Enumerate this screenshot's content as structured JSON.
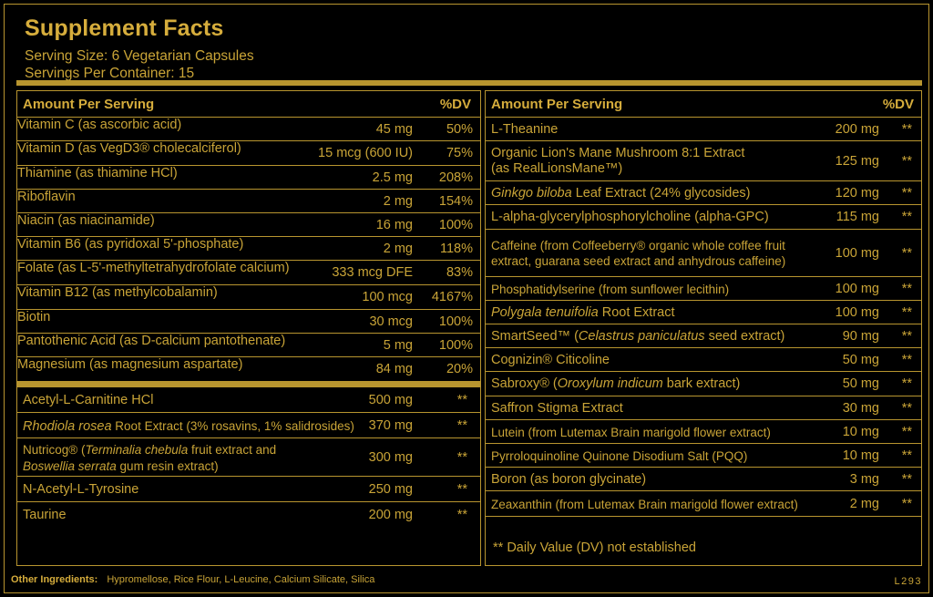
{
  "header": {
    "title": "Supplement Facts",
    "serving_size": "Serving Size: 6 Vegetarian Capsules",
    "servings_per_container": "Servings Per Container: 15"
  },
  "columns": {
    "amount_per_serving": "Amount Per Serving",
    "dv": "%DV"
  },
  "left_vitamins": [
    {
      "name": "Vitamin C (as ascorbic acid)",
      "amount": "45 mg",
      "dv": "50%"
    },
    {
      "name": "Vitamin D (as VegD3® cholecalciferol)",
      "amount": "15 mcg (600 IU)",
      "dv": "75%"
    },
    {
      "name": "Thiamine (as thiamine HCl)",
      "amount": "2.5 mg",
      "dv": "208%"
    },
    {
      "name": "Riboflavin",
      "amount": "2 mg",
      "dv": "154%"
    },
    {
      "name": "Niacin (as niacinamide)",
      "amount": "16 mg",
      "dv": "100%"
    },
    {
      "name": "Vitamin B6 (as pyridoxal 5'-phosphate)",
      "amount": "2 mg",
      "dv": "118%"
    },
    {
      "name": "Folate (as L-5'-methyltetrahydrofolate calcium)",
      "amount": "333 mcg DFE",
      "dv": "83%"
    },
    {
      "name": "Vitamin B12 (as methylcobalamin)",
      "amount": "100 mcg",
      "dv": "4167%"
    },
    {
      "name": "Biotin",
      "amount": "30 mcg",
      "dv": "100%"
    },
    {
      "name": "Pantothenic Acid (as D-calcium pantothenate)",
      "amount": "5 mg",
      "dv": "100%"
    },
    {
      "name": "Magnesium (as magnesium aspartate)",
      "amount": "84 mg",
      "dv": "20%"
    }
  ],
  "left_other": [
    {
      "name": "Acetyl-L-Carnitine HCl",
      "amount": "500 mg",
      "dv": "**"
    },
    {
      "name_italic": "Rhodiola rosea",
      "name_rest": " Root Extract (3% rosavins, 1% salidrosides)",
      "amount": "370 mg",
      "dv": "**"
    },
    {
      "name_line1_a": "Nutricog® (",
      "name_line1_i": "Terminalia chebula",
      "name_line1_b": " fruit extract and",
      "name_line2_i": "Boswellia serrata",
      "name_line2_b": " gum resin extract)",
      "amount": "300 mg",
      "dv": "**"
    },
    {
      "name": "N-Acetyl-L-Tyrosine",
      "amount": "250 mg",
      "dv": "**"
    },
    {
      "name": "Taurine",
      "amount": "200 mg",
      "dv": "**"
    }
  ],
  "right_rows": [
    {
      "name": "L-Theanine",
      "amount": "200 mg",
      "dv": "**"
    },
    {
      "name_line1": "Organic Lion's Mane Mushroom 8:1 Extract",
      "name_line2": "(as RealLionsMane™)",
      "amount": "125 mg",
      "dv": "**"
    },
    {
      "name_italic": "Ginkgo biloba",
      "name_rest": " Leaf Extract (24% glycosides)",
      "amount": "120 mg",
      "dv": "**"
    },
    {
      "name": "L-alpha-glycerylphosphorylcholine (alpha-GPC)",
      "amount": "115 mg",
      "dv": "**"
    },
    {
      "name_line1": "Caffeine (from Coffeeberry® organic whole coffee fruit",
      "name_line2": "extract, guarana seed extract and anhydrous caffeine)",
      "amount": "100 mg",
      "dv": "**"
    },
    {
      "name": "Phosphatidylserine (from sunflower lecithin)",
      "amount": "100 mg",
      "dv": "**"
    },
    {
      "name_italic": "Polygala tenuifolia",
      "name_rest": " Root Extract",
      "amount": "100 mg",
      "dv": "**"
    },
    {
      "name_pre": "SmartSeed™ (",
      "name_italic": "Celastrus paniculatus",
      "name_rest": " seed extract)",
      "amount": "90 mg",
      "dv": "**"
    },
    {
      "name": "Cognizin® Citicoline",
      "amount": "50 mg",
      "dv": "**"
    },
    {
      "name_pre": "Sabroxy® (",
      "name_italic": "Oroxylum indicum",
      "name_rest": " bark extract)",
      "amount": "50 mg",
      "dv": "**"
    },
    {
      "name": "Saffron Stigma Extract",
      "amount": "30 mg",
      "dv": "**"
    },
    {
      "name": "Lutein (from Lutemax Brain marigold flower extract)",
      "amount": "10 mg",
      "dv": "**"
    },
    {
      "name": "Pyrroloquinoline Quinone Disodium Salt (PQQ)",
      "amount": "10 mg",
      "dv": "**"
    },
    {
      "name": "Boron  (as boron glycinate)",
      "amount": "3 mg",
      "dv": "**"
    },
    {
      "name": "Zeaxanthin (from Lutemax Brain marigold flower extract)",
      "amount": "2 mg",
      "dv": "**"
    }
  ],
  "footnote": "** Daily Value (DV) not established",
  "other_ingredients": {
    "label": "Other Ingredients:",
    "text": "Hypromellose, Rice Flour, L-Leucine, Calcium Silicate, Silica"
  },
  "lot": "L293"
}
